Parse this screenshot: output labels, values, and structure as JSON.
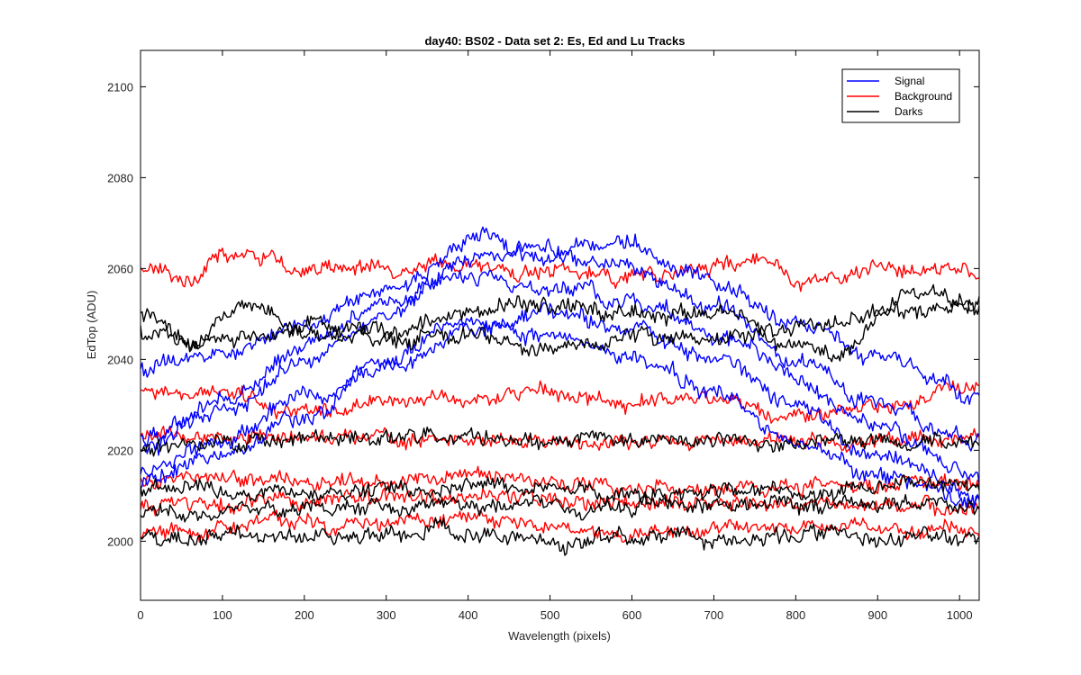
{
  "chart_data": {
    "type": "line",
    "title": "day40: BS02 - Data set 2: Es, Ed and Lu Tracks",
    "xlabel": "Wavelength (pixels)",
    "ylabel": "EdTop (ADU)",
    "xlim": [
      0,
      1024
    ],
    "ylim": [
      1987,
      2108
    ],
    "xticks": [
      0,
      100,
      200,
      300,
      400,
      500,
      600,
      700,
      800,
      900,
      1000
    ],
    "yticks": [
      2000,
      2020,
      2040,
      2060,
      2080,
      2100
    ],
    "xtick_labels": [
      "0",
      "100",
      "200",
      "300",
      "400",
      "500",
      "600",
      "700",
      "800",
      "900",
      "1000"
    ],
    "ytick_labels": [
      "2000",
      "2020",
      "2040",
      "2060",
      "2080",
      "2100"
    ],
    "legend": [
      {
        "name": "Signal",
        "color": "#0000ff"
      },
      {
        "name": "Background",
        "color": "#ff0000"
      },
      {
        "name": "Darks",
        "color": "#000000"
      }
    ],
    "legend_position": "top-right",
    "series": [
      {
        "group": "Signal",
        "color": "#0000ff",
        "knots": [
          [
            0,
            2038
          ],
          [
            100,
            2041
          ],
          [
            200,
            2048
          ],
          [
            300,
            2055
          ],
          [
            420,
            2067
          ],
          [
            500,
            2062
          ],
          [
            580,
            2067
          ],
          [
            700,
            2058
          ],
          [
            800,
            2048
          ],
          [
            900,
            2040
          ],
          [
            1024,
            2032
          ]
        ],
        "noise": 1.6
      },
      {
        "group": "Signal",
        "color": "#0000ff",
        "knots": [
          [
            0,
            2023
          ],
          [
            100,
            2028
          ],
          [
            200,
            2040
          ],
          [
            300,
            2050
          ],
          [
            400,
            2062
          ],
          [
            480,
            2065
          ],
          [
            560,
            2062
          ],
          [
            700,
            2052
          ],
          [
            800,
            2040
          ],
          [
            900,
            2030
          ],
          [
            1024,
            2022
          ]
        ],
        "noise": 1.6
      },
      {
        "group": "Signal",
        "color": "#0000ff",
        "knots": [
          [
            0,
            2020
          ],
          [
            100,
            2030
          ],
          [
            200,
            2043
          ],
          [
            300,
            2053
          ],
          [
            400,
            2058
          ],
          [
            500,
            2055
          ],
          [
            600,
            2053
          ],
          [
            700,
            2046
          ],
          [
            800,
            2036
          ],
          [
            900,
            2025
          ],
          [
            1024,
            2014
          ]
        ],
        "noise": 1.6
      },
      {
        "group": "Signal",
        "color": "#0000ff",
        "knots": [
          [
            0,
            2015
          ],
          [
            100,
            2022
          ],
          [
            200,
            2032
          ],
          [
            300,
            2038
          ],
          [
            400,
            2046
          ],
          [
            500,
            2050
          ],
          [
            600,
            2047
          ],
          [
            700,
            2040
          ],
          [
            800,
            2030
          ],
          [
            900,
            2018
          ],
          [
            1024,
            2010
          ]
        ],
        "noise": 1.6
      },
      {
        "group": "Signal",
        "color": "#0000ff",
        "knots": [
          [
            0,
            2012
          ],
          [
            100,
            2020
          ],
          [
            200,
            2027
          ],
          [
            300,
            2040
          ],
          [
            400,
            2048
          ],
          [
            500,
            2045
          ],
          [
            600,
            2040
          ],
          [
            700,
            2033
          ],
          [
            800,
            2022
          ],
          [
            900,
            2015
          ],
          [
            1024,
            2009
          ]
        ],
        "noise": 1.6
      },
      {
        "group": "Background",
        "color": "#ff0000",
        "knots": [
          [
            0,
            2060
          ],
          [
            60,
            2058
          ],
          [
            100,
            2063
          ],
          [
            150,
            2062
          ],
          [
            200,
            2059
          ],
          [
            300,
            2060
          ],
          [
            400,
            2061
          ],
          [
            500,
            2059
          ],
          [
            600,
            2058
          ],
          [
            700,
            2060
          ],
          [
            760,
            2063
          ],
          [
            800,
            2057
          ],
          [
            900,
            2060
          ],
          [
            1024,
            2059
          ]
        ],
        "noise": 1.5
      },
      {
        "group": "Background",
        "color": "#ff0000",
        "knots": [
          [
            0,
            2033
          ],
          [
            100,
            2033
          ],
          [
            200,
            2028
          ],
          [
            300,
            2031
          ],
          [
            400,
            2031
          ],
          [
            500,
            2033
          ],
          [
            600,
            2030
          ],
          [
            700,
            2032
          ],
          [
            800,
            2027
          ],
          [
            900,
            2030
          ],
          [
            1024,
            2035
          ]
        ],
        "noise": 1.5
      },
      {
        "group": "Background",
        "color": "#ff0000",
        "knots": [
          [
            0,
            2023
          ],
          [
            200,
            2023
          ],
          [
            400,
            2022
          ],
          [
            600,
            2022
          ],
          [
            800,
            2022
          ],
          [
            1024,
            2023
          ]
        ],
        "noise": 1.5
      },
      {
        "group": "Background",
        "color": "#ff0000",
        "knots": [
          [
            0,
            2014
          ],
          [
            200,
            2013
          ],
          [
            400,
            2015
          ],
          [
            600,
            2012
          ],
          [
            800,
            2012
          ],
          [
            1024,
            2013
          ]
        ],
        "noise": 1.5
      },
      {
        "group": "Background",
        "color": "#ff0000",
        "knots": [
          [
            0,
            2008
          ],
          [
            200,
            2009
          ],
          [
            400,
            2010
          ],
          [
            600,
            2008
          ],
          [
            800,
            2009
          ],
          [
            1024,
            2007
          ]
        ],
        "noise": 1.5
      },
      {
        "group": "Background",
        "color": "#ff0000",
        "knots": [
          [
            0,
            2002
          ],
          [
            200,
            2004
          ],
          [
            400,
            2005
          ],
          [
            600,
            2002
          ],
          [
            800,
            2003
          ],
          [
            1024,
            2003
          ]
        ],
        "noise": 1.5
      },
      {
        "group": "Darks",
        "color": "#000000",
        "knots": [
          [
            0,
            2050
          ],
          [
            60,
            2044
          ],
          [
            130,
            2053
          ],
          [
            200,
            2048
          ],
          [
            300,
            2046
          ],
          [
            400,
            2050
          ],
          [
            500,
            2052
          ],
          [
            600,
            2049
          ],
          [
            700,
            2050
          ],
          [
            800,
            2043
          ],
          [
            850,
            2042
          ],
          [
            940,
            2056
          ],
          [
            1024,
            2051
          ]
        ],
        "noise": 1.6
      },
      {
        "group": "Darks",
        "color": "#000000",
        "knots": [
          [
            0,
            2046
          ],
          [
            100,
            2044
          ],
          [
            200,
            2047
          ],
          [
            300,
            2044
          ],
          [
            400,
            2046
          ],
          [
            500,
            2043
          ],
          [
            600,
            2046
          ],
          [
            700,
            2045
          ],
          [
            800,
            2047
          ],
          [
            900,
            2050
          ],
          [
            1024,
            2052
          ]
        ],
        "noise": 1.6
      },
      {
        "group": "Darks",
        "color": "#000000",
        "knots": [
          [
            0,
            2021
          ],
          [
            200,
            2022
          ],
          [
            400,
            2023
          ],
          [
            600,
            2022
          ],
          [
            800,
            2022
          ],
          [
            1024,
            2022
          ]
        ],
        "noise": 1.5
      },
      {
        "group": "Darks",
        "color": "#000000",
        "knots": [
          [
            0,
            2012
          ],
          [
            200,
            2011
          ],
          [
            400,
            2012
          ],
          [
            600,
            2011
          ],
          [
            800,
            2011
          ],
          [
            1024,
            2012
          ]
        ],
        "noise": 1.5
      },
      {
        "group": "Darks",
        "color": "#000000",
        "knots": [
          [
            0,
            2006
          ],
          [
            200,
            2007
          ],
          [
            400,
            2008
          ],
          [
            600,
            2007
          ],
          [
            800,
            2008
          ],
          [
            1024,
            2008
          ]
        ],
        "noise": 1.5
      },
      {
        "group": "Darks",
        "color": "#000000",
        "knots": [
          [
            0,
            2001
          ],
          [
            200,
            2001
          ],
          [
            400,
            2002
          ],
          [
            500,
            1999
          ],
          [
            600,
            2001
          ],
          [
            800,
            2001
          ],
          [
            1024,
            2001
          ]
        ],
        "noise": 1.5
      }
    ]
  }
}
